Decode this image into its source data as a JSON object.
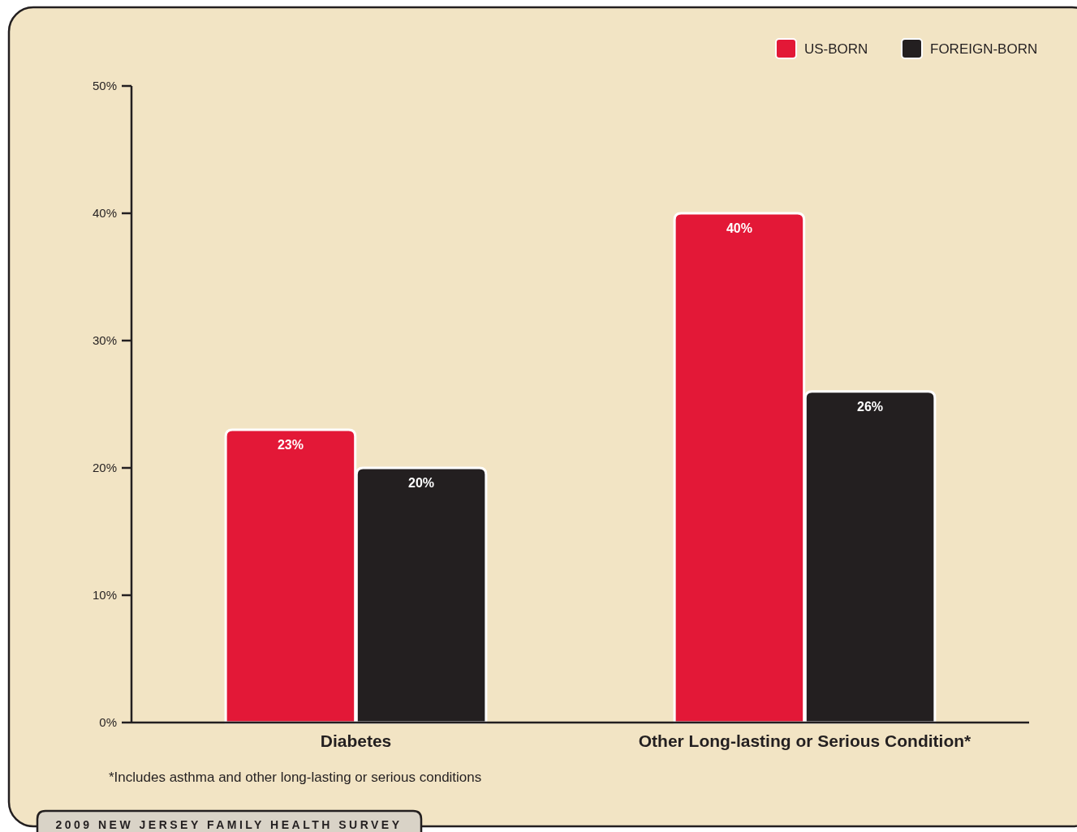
{
  "chart_data": {
    "type": "bar",
    "categories": [
      "Diabetes",
      "Other Long-lasting or Serious Condition*"
    ],
    "series": [
      {
        "name": "US-BORN",
        "color": "#e31837",
        "values": [
          23,
          40
        ],
        "value_labels": [
          "23%",
          "40%"
        ]
      },
      {
        "name": "FOREIGN-BORN",
        "color": "#231f20",
        "values": [
          20,
          26
        ],
        "value_labels": [
          "20%",
          "26%"
        ]
      }
    ],
    "ylim": [
      0,
      50
    ],
    "yticks": [
      {
        "value": 0,
        "label": "0%"
      },
      {
        "value": 10,
        "label": "10%"
      },
      {
        "value": 20,
        "label": "20%"
      },
      {
        "value": 30,
        "label": "30%"
      },
      {
        "value": 40,
        "label": "40%"
      },
      {
        "value": 50,
        "label": "50%"
      }
    ],
    "grid": false,
    "legend": "top right",
    "annotations": [
      "*Includes asthma and other long-lasting or serious conditions",
      "2009 NEW JERSEY FAMILY HEALTH SURVEY"
    ]
  }
}
